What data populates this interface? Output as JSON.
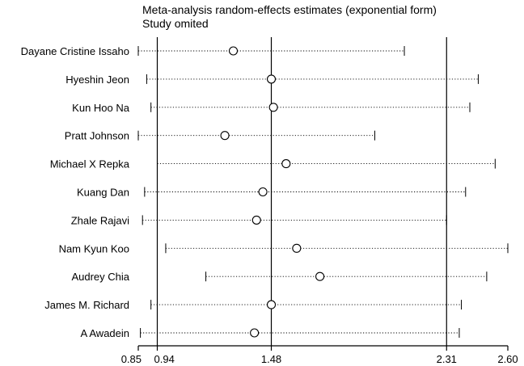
{
  "chart_data": {
    "type": "forest",
    "title": "Meta-analysis random-effects estimates (exponential form)",
    "subtitle": "Study omited",
    "x_ticks": [
      0.85,
      0.94,
      1.48,
      2.31,
      2.6
    ],
    "x_tick_labels": [
      "0.85",
      "0.94",
      "1.48",
      "2.31",
      "2.60"
    ],
    "xlim": [
      0.85,
      2.6
    ],
    "reference_lines": [
      0.94,
      1.48,
      2.31
    ],
    "studies": [
      {
        "name": "Dayane Cristine Issaho",
        "estimate": 1.3,
        "lower": 0.85,
        "upper": 2.11
      },
      {
        "name": "Hyeshin Jeon",
        "estimate": 1.48,
        "lower": 0.89,
        "upper": 2.46
      },
      {
        "name": "Kun Hoo Na",
        "estimate": 1.49,
        "lower": 0.91,
        "upper": 2.42
      },
      {
        "name": "Pratt Johnson",
        "estimate": 1.26,
        "lower": 0.85,
        "upper": 1.97
      },
      {
        "name": "Michael X Repka",
        "estimate": 1.55,
        "lower": 0.94,
        "upper": 2.54
      },
      {
        "name": "Kuang Dan",
        "estimate": 1.44,
        "lower": 0.88,
        "upper": 2.4
      },
      {
        "name": "Zhale Rajavi",
        "estimate": 1.41,
        "lower": 0.87,
        "upper": 2.31
      },
      {
        "name": "Nam Kyun Koo",
        "estimate": 1.6,
        "lower": 0.98,
        "upper": 2.6
      },
      {
        "name": "Audrey Chia",
        "estimate": 1.71,
        "lower": 1.17,
        "upper": 2.5
      },
      {
        "name": "James M. Richard",
        "estimate": 1.48,
        "lower": 0.91,
        "upper": 2.38
      },
      {
        "name": "A Awadein",
        "estimate": 1.4,
        "lower": 0.86,
        "upper": 2.37
      }
    ]
  }
}
